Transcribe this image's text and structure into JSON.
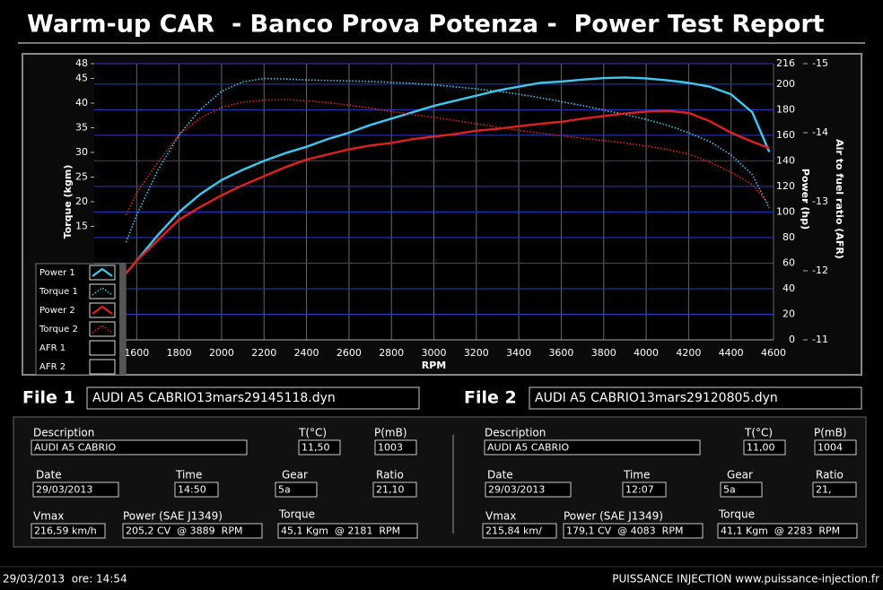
{
  "header": {
    "title": "Warm-up CAR  - Banco Prova Potenza -  Power Test Report"
  },
  "chart_data": {
    "type": "line",
    "x_label": "RPM",
    "y_label": "Torque (kgm)",
    "y2_label": "Power (hp)",
    "y3_label": "Air to fuel ratio (AFR)",
    "x": [
      1550,
      1600,
      1700,
      1800,
      1900,
      2000,
      2100,
      2200,
      2300,
      2400,
      2500,
      2600,
      2700,
      2800,
      2900,
      3000,
      3100,
      3200,
      3300,
      3400,
      3500,
      3600,
      3700,
      3800,
      3900,
      4000,
      4100,
      4200,
      4300,
      4400,
      4500,
      4580
    ],
    "xlim": [
      1400,
      4600
    ],
    "xticks": [
      1600,
      1800,
      2000,
      2200,
      2400,
      2600,
      2800,
      3000,
      3200,
      3400,
      3600,
      3800,
      4000,
      4200,
      4400,
      4600
    ],
    "ylim": [
      -8,
      48
    ],
    "yticks": [
      15,
      20,
      25,
      30,
      35,
      40,
      45,
      48
    ],
    "y2lim": [
      0,
      216
    ],
    "y2ticks": [
      0,
      20,
      40,
      60,
      80,
      100,
      120,
      140,
      160,
      180,
      200,
      216
    ],
    "y3lim": [
      -11,
      -15
    ],
    "y3ticks": [
      -15,
      -14,
      -13,
      -12,
      -11
    ],
    "grid": true,
    "legend": "lower-left",
    "series": [
      {
        "name": "Power 1",
        "color": "#3ec8f0",
        "line_style": "solid",
        "axis": "y2",
        "values": [
          52,
          62,
          82,
          100,
          114,
          125,
          133,
          140,
          146,
          151,
          157,
          162,
          168,
          173,
          178,
          183,
          187,
          191,
          195,
          198,
          201,
          202,
          203.5,
          204.7,
          205.2,
          204.5,
          203,
          201,
          198,
          192,
          178,
          147
        ]
      },
      {
        "name": "Torque 1",
        "color": "#3ec8f0",
        "line_style": "dotted",
        "axis": "y",
        "values": [
          11.8,
          17.3,
          26.4,
          33.6,
          38.7,
          42.4,
          44.3,
          45.0,
          44.9,
          44.7,
          44.6,
          44.5,
          44.4,
          44.2,
          44.0,
          43.7,
          43.3,
          42.9,
          42.4,
          41.8,
          41.1,
          40.3,
          39.5,
          38.6,
          37.7,
          36.7,
          35.5,
          34.0,
          32.2,
          29.5,
          25.5,
          18.7
        ]
      },
      {
        "name": "Power 2",
        "color": "#e02020",
        "line_style": "solid",
        "axis": "y2",
        "values": [
          52,
          62,
          78,
          94,
          104,
          113,
          121,
          128,
          135,
          141,
          145,
          149,
          152,
          154,
          157,
          159,
          161,
          163.5,
          165,
          167,
          169,
          170.5,
          173,
          175,
          177,
          178.5,
          179.1,
          177.5,
          171,
          162,
          155,
          150
        ]
      },
      {
        "name": "Torque 2",
        "color": "#e02020",
        "line_style": "dotted",
        "axis": "y",
        "values": [
          17.3,
          21.8,
          28,
          33.6,
          37,
          39.1,
          40.2,
          40.6,
          40.7,
          40.5,
          40.1,
          39.6,
          39.0,
          38.3,
          37.7,
          37.1,
          36.5,
          35.8,
          35.1,
          34.5,
          33.9,
          33.4,
          32.9,
          32.4,
          31.9,
          31.3,
          30.6,
          29.7,
          28.0,
          26.0,
          23.5,
          19.5
        ]
      },
      {
        "name": "AFR 1",
        "color": "#ffffff",
        "line_style": "solid",
        "axis": "y3"
      },
      {
        "name": "AFR 2",
        "color": "#ffffff",
        "line_style": "solid",
        "axis": "y3"
      }
    ]
  },
  "files": [
    {
      "label": "File 1",
      "filename": "AUDI A5 CABRIO13mars29145118.dyn",
      "description_label": "Description",
      "description": "AUDI A5 CABRIO",
      "temp_label": "T(°C)",
      "temp": "11,50",
      "pressure_label": "P(mB)",
      "pressure": "1003",
      "date_label": "Date",
      "date": "29/03/2013",
      "time_label": "Time",
      "time": "14:50",
      "gear_label": "Gear",
      "gear": "5a",
      "ratio_label": "Ratio",
      "ratio": "21,10",
      "vmax_label": "Vmax",
      "vmax": "216,59 km/h",
      "power_label": "Power (SAE J1349)",
      "power": "205,2 CV  @ 3889  RPM",
      "torque_label": "Torque",
      "torque": "45,1 Kgm  @ 2181  RPM"
    },
    {
      "label": "File 2",
      "filename": "AUDI A5 CABRIO13mars29120805.dyn",
      "description_label": "Description",
      "description": "AUDI A5 CABRIO",
      "temp_label": "T(°C)",
      "temp": "11,00",
      "pressure_label": "P(mB)",
      "pressure": "1004",
      "date_label": "Date",
      "date": "29/03/2013",
      "time_label": "Time",
      "time": "12:07",
      "gear_label": "Gear",
      "gear": "5a",
      "ratio_label": "Ratio",
      "ratio": "21,",
      "vmax_label": "Vmax",
      "vmax": "215,84 km/",
      "power_label": "Power (SAE J1349)",
      "power": "179,1 CV  @ 4083  RPM",
      "torque_label": "Torque",
      "torque": "41,1 Kgm  @ 2283  RPM"
    }
  ],
  "footer": {
    "left": "29/03/2013  ore: 14:54",
    "right": "PUISSANCE INJECTION www.puissance-injection.fr"
  }
}
